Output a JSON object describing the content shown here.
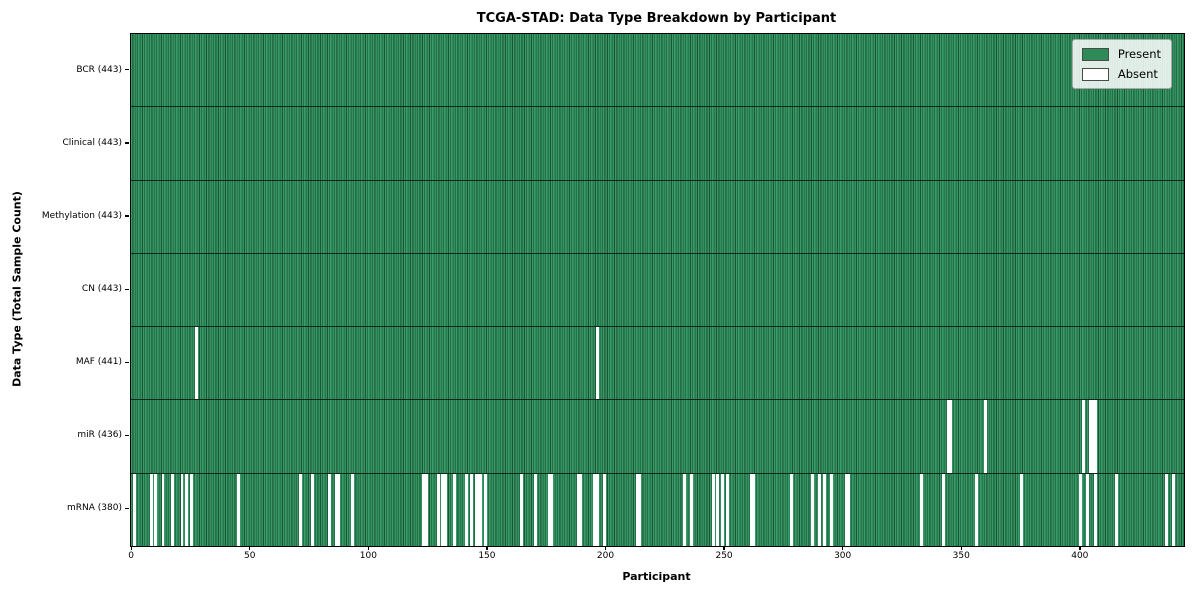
{
  "chart_data": {
    "type": "heatmap",
    "title": "TCGA-STAD: Data Type Breakdown by Participant",
    "xlabel": "Participant",
    "ylabel": "Data Type (Total Sample Count)",
    "x_ticks": [
      0,
      50,
      100,
      150,
      200,
      250,
      300,
      350,
      400
    ],
    "xlim": [
      -0.5,
      443.5
    ],
    "n_participants": 443,
    "grid": "row-separators-only",
    "colors": {
      "present": "#2e8b57",
      "present_light": "#3a9a6a",
      "present_dark": "#1b5536",
      "absent": "#ffffff",
      "frame": "#000000"
    },
    "legend": {
      "position": "upper right",
      "entries": [
        {
          "label": "Present",
          "color": "#2e8b57"
        },
        {
          "label": "Absent",
          "color": "#ffffff"
        }
      ]
    },
    "rows": [
      {
        "data_type": "BCR",
        "label": "BCR (443)",
        "present_count": 443,
        "absent_participants": []
      },
      {
        "data_type": "Clinical",
        "label": "Clinical (443)",
        "present_count": 443,
        "absent_participants": []
      },
      {
        "data_type": "Methylation",
        "label": "Methylation (443)",
        "present_count": 443,
        "absent_participants": []
      },
      {
        "data_type": "CN",
        "label": "CN (443)",
        "present_count": 443,
        "absent_participants": []
      },
      {
        "data_type": "MAF",
        "label": "MAF (441)",
        "present_count": 441,
        "absent_participants": [
          27,
          196
        ]
      },
      {
        "data_type": "miR",
        "label": "miR (436)",
        "present_count": 436,
        "absent_participants": [
          344,
          345,
          360,
          401,
          404,
          405,
          406
        ]
      },
      {
        "data_type": "mRNA",
        "label": "mRNA (380)",
        "present_count": 380,
        "absent_participants": [
          1,
          8,
          10,
          13,
          17,
          21,
          23,
          25,
          45,
          71,
          76,
          83,
          86,
          87,
          93,
          123,
          124,
          129,
          131,
          132,
          136,
          141,
          143,
          145,
          146,
          147,
          149,
          164,
          170,
          176,
          177,
          188,
          189,
          195,
          196,
          199,
          213,
          214,
          233,
          236,
          245,
          247,
          249,
          251,
          261,
          262,
          278,
          287,
          290,
          292,
          295,
          301,
          302,
          333,
          342,
          356,
          375,
          400,
          403,
          406,
          415,
          436,
          439
        ]
      }
    ]
  }
}
